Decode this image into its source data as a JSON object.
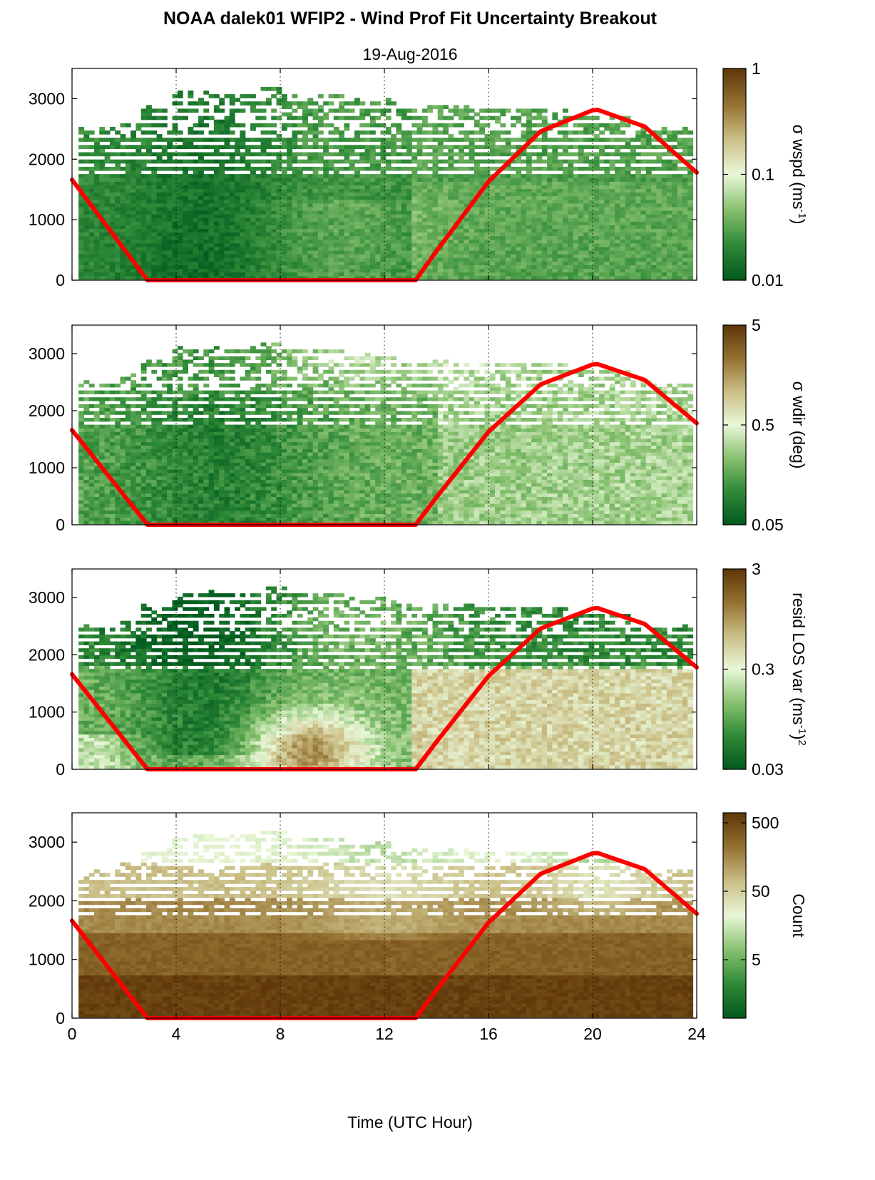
{
  "title": "NOAA dalek01 WFIP2 - Wind Prof Fit Uncertainty Breakout",
  "subtitle": "19-Aug-2016",
  "colors": {
    "colormap": [
      "#005a1e",
      "#2f8a38",
      "#86c06e",
      "#e9f7d8",
      "#c9bd84",
      "#957232",
      "#5e3608"
    ],
    "overlay_line": "#ff0000",
    "no_data": "#ffffff"
  },
  "chart_data": [
    {
      "type": "heatmap",
      "panel": "wspd",
      "title": "NOAA dalek01 WFIP2 - Wind Prof Fit Uncertainty Breakout",
      "subtitle": "19-Aug-2016",
      "xlabel": "",
      "ylabel": "",
      "xlim": [
        0,
        24
      ],
      "ylim": [
        0,
        3500
      ],
      "xticks": [
        "0",
        "4",
        "8",
        "12",
        "16",
        "20",
        "24"
      ],
      "yticks": [
        "0",
        "1000",
        "2000",
        "3000"
      ],
      "grid": "vertical dotted at 4-hour ticks",
      "colorbar": {
        "label": "σ wspd (ms-1)",
        "scale": "log",
        "ticks": [
          "0.01",
          "0.1",
          "1"
        ],
        "range": [
          0.01,
          1
        ]
      },
      "overlay": {
        "x": [
          0,
          2.9,
          13.2,
          14,
          16,
          18,
          20,
          20.2,
          22,
          24
        ],
        "y": [
          1660,
          0,
          0,
          480,
          1630,
          2460,
          2810,
          2815,
          2540,
          1780
        ]
      }
    },
    {
      "type": "heatmap",
      "panel": "wdir",
      "xlabel": "",
      "ylabel": "",
      "xlim": [
        0,
        24
      ],
      "ylim": [
        0,
        3500
      ],
      "xticks": [
        "0",
        "4",
        "8",
        "12",
        "16",
        "20",
        "24"
      ],
      "yticks": [
        "0",
        "1000",
        "2000",
        "3000"
      ],
      "grid": "vertical dotted at 4-hour ticks",
      "colorbar": {
        "label": "σ wdir (deg)",
        "scale": "log",
        "ticks": [
          "0.05",
          "0.5",
          "5"
        ],
        "range": [
          0.05,
          5
        ]
      },
      "overlay": {
        "x": [
          0,
          2.9,
          13.2,
          14,
          16,
          18,
          20,
          20.2,
          22,
          24
        ],
        "y": [
          1660,
          0,
          0,
          480,
          1630,
          2460,
          2810,
          2815,
          2540,
          1780
        ]
      }
    },
    {
      "type": "heatmap",
      "panel": "resid",
      "xlabel": "",
      "ylabel": "",
      "xlim": [
        0,
        24
      ],
      "ylim": [
        0,
        3500
      ],
      "xticks": [
        "0",
        "4",
        "8",
        "12",
        "16",
        "20",
        "24"
      ],
      "yticks": [
        "0",
        "1000",
        "2000",
        "3000"
      ],
      "grid": "vertical dotted at 4-hour ticks",
      "colorbar": {
        "label": "resid LOS var (ms-1)2",
        "scale": "log",
        "ticks": [
          "0.03",
          "0.3",
          "3"
        ],
        "range": [
          0.03,
          3
        ]
      },
      "overlay": {
        "x": [
          0,
          2.9,
          13.2,
          14,
          16,
          18,
          20,
          20.2,
          22,
          24
        ],
        "y": [
          1660,
          0,
          0,
          480,
          1630,
          2460,
          2810,
          2815,
          2540,
          1780
        ]
      }
    },
    {
      "type": "heatmap",
      "panel": "count",
      "xlabel": "Time (UTC Hour)",
      "ylabel": "",
      "xlim": [
        0,
        24
      ],
      "ylim": [
        0,
        3500
      ],
      "xticks": [
        "0",
        "4",
        "8",
        "12",
        "16",
        "20",
        "24"
      ],
      "yticks": [
        "0",
        "1000",
        "2000",
        "3000"
      ],
      "grid": "vertical dotted at 4-hour ticks",
      "colorbar": {
        "label": "Count",
        "scale": "log",
        "ticks": [
          "5",
          "50",
          "500"
        ],
        "range": [
          0.7,
          700
        ]
      },
      "overlay": {
        "x": [
          0,
          2.9,
          13.2,
          14,
          16,
          18,
          20,
          20.2,
          22,
          24
        ],
        "y": [
          1660,
          0,
          0,
          480,
          1630,
          2460,
          2810,
          2815,
          2540,
          1780
        ]
      }
    }
  ]
}
